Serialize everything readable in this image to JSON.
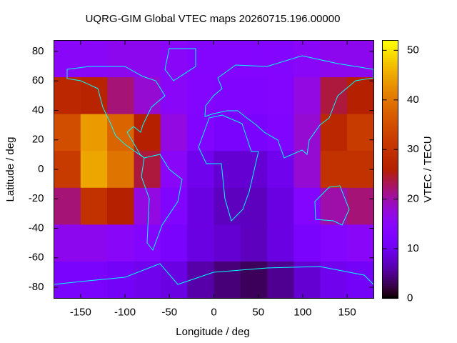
{
  "chart_data": {
    "type": "heatmap",
    "title": "UQRG-GIM Global VTEC maps 20260715.196.00000",
    "xlabel": "Longitude / deg",
    "ylabel": "Latitude / deg",
    "colorbar_label": "VTEC / TECU",
    "xlim": [
      -180,
      180
    ],
    "ylim": [
      -87.5,
      87.5
    ],
    "xticks": [
      -150,
      -100,
      -50,
      0,
      50,
      100,
      150
    ],
    "yticks": [
      -80,
      -60,
      -40,
      -20,
      0,
      20,
      40,
      60,
      80
    ],
    "clim": [
      0,
      52
    ],
    "cticks": [
      0,
      10,
      20,
      30,
      40,
      50
    ],
    "xbins": [
      -180,
      -150,
      -120,
      -90,
      -60,
      -30,
      0,
      30,
      60,
      90,
      120,
      150,
      180
    ],
    "ybins": [
      87.5,
      62.5,
      37.5,
      12.5,
      -12.5,
      -37.5,
      -62.5,
      -87.5
    ],
    "values": [
      [
        15,
        15,
        16,
        16,
        15,
        14,
        14,
        14,
        14,
        15,
        16,
        16
      ],
      [
        28,
        27,
        22,
        18,
        15,
        14,
        13,
        13,
        14,
        17,
        24,
        26
      ],
      [
        35,
        44,
        38,
        26,
        17,
        13,
        12,
        12,
        13,
        18,
        28,
        32
      ],
      [
        32,
        45,
        40,
        24,
        15,
        10,
        8,
        8,
        10,
        18,
        30,
        30
      ],
      [
        22,
        30,
        26,
        17,
        13,
        9,
        7,
        7,
        9,
        14,
        20,
        22
      ],
      [
        16,
        16,
        15,
        14,
        12,
        9,
        8,
        7,
        9,
        12,
        14,
        15
      ],
      [
        12,
        12,
        11,
        10,
        9,
        6,
        4,
        3,
        5,
        8,
        10,
        11
      ]
    ]
  }
}
